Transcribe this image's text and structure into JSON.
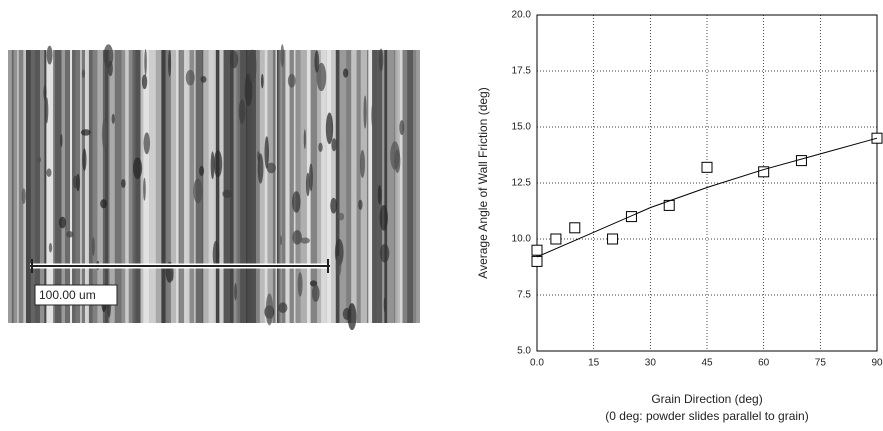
{
  "micrograph": {
    "scale_label": "100.00 um"
  },
  "chart_data": {
    "type": "scatter",
    "ylabel": "Average Angle of Wall Friction (deg)",
    "xlabel": "Grain Direction (deg)",
    "xlabel_note": "(0 deg: powder slides parallel to grain)",
    "xlim": [
      0,
      90
    ],
    "xticks": [
      {
        "value": 0,
        "label": "0.0"
      },
      15,
      30,
      45,
      60,
      75,
      90
    ],
    "ylim": [
      5,
      20
    ],
    "yticks": [
      {
        "value": 5,
        "label": "5.0"
      },
      7.5,
      {
        "value": 10,
        "label": "10.0"
      },
      12.5,
      {
        "value": 15,
        "label": "15.0"
      },
      17.5,
      {
        "value": 20,
        "label": "20.0"
      }
    ],
    "grid": true,
    "series": [
      {
        "color": "#000000",
        "marker": "square",
        "x": [
          0,
          0,
          5,
          10,
          20,
          25,
          35,
          45,
          60,
          70,
          90
        ],
        "values": [
          9.0,
          9.5,
          10.0,
          10.5,
          10.0,
          11.0,
          11.5,
          13.2,
          13.0,
          13.5,
          14.5
        ]
      },
      {
        "color": "#000000",
        "marker": "line",
        "x": [
          0,
          15,
          30,
          45,
          60,
          75,
          90
        ],
        "values": [
          9.2,
          10.3,
          11.4,
          12.3,
          13.1,
          13.8,
          14.5
        ]
      }
    ]
  }
}
